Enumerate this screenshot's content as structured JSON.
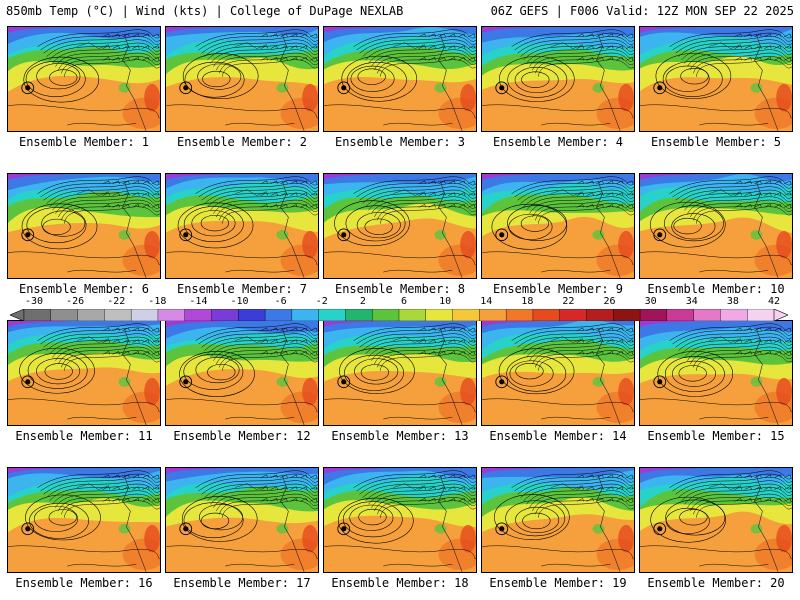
{
  "header": {
    "left": "850mb Temp (°C) | Wind (kts) | College of DuPage NEXLAB",
    "right": "06Z GEFS | F006 Valid: 12Z MON SEP 22 2025"
  },
  "colorbar": {
    "labels": [
      "-30",
      "-26",
      "-22",
      "-18",
      "-14",
      "-10",
      "-6",
      "-2",
      "2",
      "6",
      "10",
      "14",
      "18",
      "22",
      "26",
      "30",
      "34",
      "38",
      "42"
    ],
    "colors": [
      "#6f6f6f",
      "#8f8f8f",
      "#a8a8a8",
      "#bfbfbf",
      "#cfcfe6",
      "#d58be6",
      "#b04ad6",
      "#7a3cd6",
      "#3c3cd6",
      "#3c78e6",
      "#3cb4f0",
      "#28d2c8",
      "#23b46e",
      "#5cc43c",
      "#a8d83c",
      "#e6e63c",
      "#f5c83c",
      "#f5a03c",
      "#f07828",
      "#e64b1e",
      "#d62828",
      "#b41e1e",
      "#8c1414",
      "#a0145a",
      "#c83c96",
      "#e678c8",
      "#f0a8e6",
      "#f5d2f0"
    ]
  },
  "captions": [
    "Ensemble Member: 1",
    "Ensemble Member: 2",
    "Ensemble Member: 3",
    "Ensemble Member: 4",
    "Ensemble Member: 5",
    "Ensemble Member: 6",
    "Ensemble Member: 7",
    "Ensemble Member: 8",
    "Ensemble Member: 9",
    "Ensemble Member: 10",
    "Ensemble Member: 11",
    "Ensemble Member: 12",
    "Ensemble Member: 13",
    "Ensemble Member: 14",
    "Ensemble Member: 15",
    "Ensemble Member: 16",
    "Ensemble Member: 17",
    "Ensemble Member: 18",
    "Ensemble Member: 19",
    "Ensemble Member: 20"
  ],
  "map_colors": {
    "cold": "#9b3cd6",
    "blue": "#3c78e6",
    "cyan": "#3cb4f0",
    "teal": "#28d2c8",
    "green": "#5cc43c",
    "yellow": "#e6e63c",
    "orange": "#f5a03c",
    "warm": "#f07828",
    "hot": "#e64b1e"
  }
}
